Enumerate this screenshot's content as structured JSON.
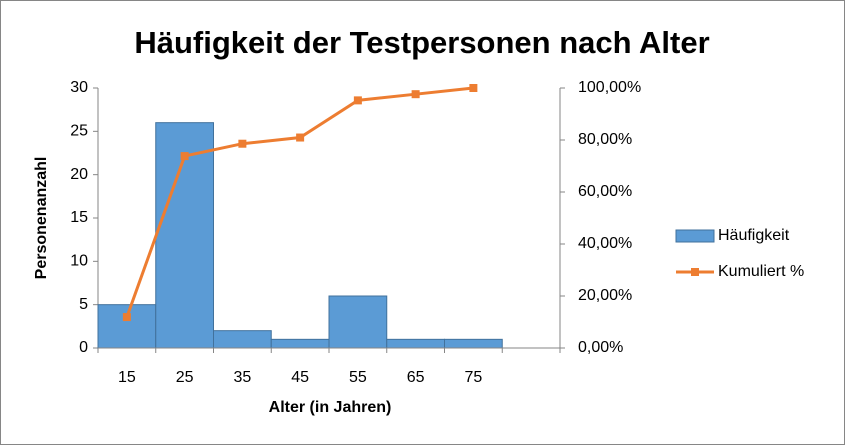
{
  "chart_data": {
    "type": "bar",
    "title": "Häufigkeit der Testpersonen nach Alter",
    "x_label": "Alter (in Jahren)",
    "y_label": "Personenanzahl",
    "categories": [
      "15",
      "25",
      "35",
      "45",
      "55",
      "65",
      "75",
      null
    ],
    "series": [
      {
        "name": "Häufigkeit",
        "type": "bar",
        "color": "#5b9bd5",
        "values": [
          5,
          26,
          2,
          1,
          6,
          1,
          1,
          null
        ]
      },
      {
        "name": "Kumuliert %",
        "type": "line",
        "axis": "y2",
        "color": "#ed7d31",
        "values": [
          11.9,
          73.81,
          78.57,
          80.95,
          95.24,
          97.62,
          100,
          null
        ]
      }
    ],
    "ylim": [
      0,
      30
    ],
    "yticks": [
      0,
      5,
      10,
      15,
      20,
      25,
      30
    ],
    "y2lim": [
      0,
      100
    ],
    "y2ticks": [
      {
        "value": 0,
        "label": "0,00%"
      },
      {
        "value": 20,
        "label": "20,00%"
      },
      {
        "value": 40,
        "label": "40,00%"
      },
      {
        "value": 60,
        "label": "60,00%"
      },
      {
        "value": 80,
        "label": "80,00%"
      },
      {
        "value": 100,
        "label": "100,00%"
      }
    ],
    "grid": false,
    "legend": "right"
  }
}
